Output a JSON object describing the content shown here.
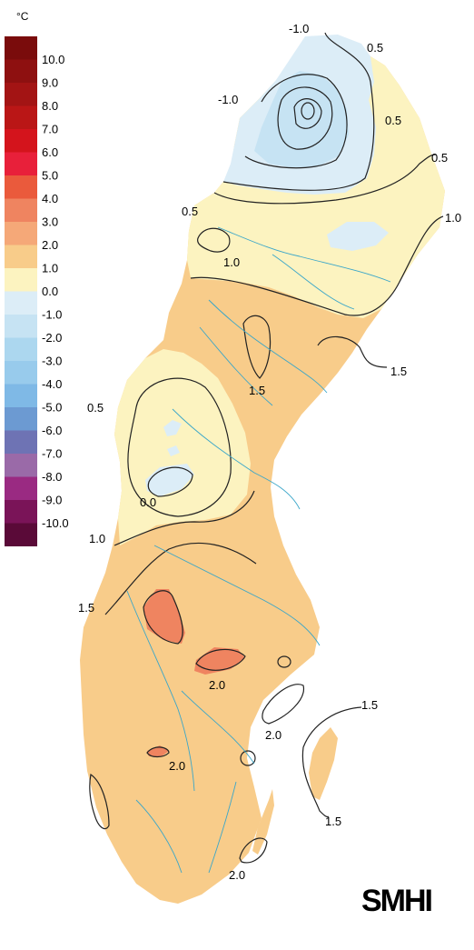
{
  "legend": {
    "unit": "°C",
    "items": [
      {
        "label": "10.0",
        "color": "#7a0c0c"
      },
      {
        "label": "9.0",
        "color": "#8e1010"
      },
      {
        "label": "8.0",
        "color": "#a31414"
      },
      {
        "label": "7.0",
        "color": "#ba1616"
      },
      {
        "label": "6.0",
        "color": "#d4141c"
      },
      {
        "label": "5.0",
        "color": "#e8203a"
      },
      {
        "label": "4.0",
        "color": "#ea5a3c"
      },
      {
        "label": "3.0",
        "color": "#ef8460"
      },
      {
        "label": "2.0",
        "color": "#f5a878"
      },
      {
        "label": "1.0",
        "color": "#f8cc8a"
      },
      {
        "label": "0.0",
        "color": "#fcf3c0"
      },
      {
        "label": "-1.0",
        "color": "#dcedf7"
      },
      {
        "label": "-2.0",
        "color": "#c6e3f3"
      },
      {
        "label": "-3.0",
        "color": "#acd7ef"
      },
      {
        "label": "-4.0",
        "color": "#98cbec"
      },
      {
        "label": "-5.0",
        "color": "#7fb9e6"
      },
      {
        "label": "-6.0",
        "color": "#6c9ad2"
      },
      {
        "label": "-7.0",
        "color": "#6e73b4"
      },
      {
        "label": "-8.0",
        "color": "#9a6aa8"
      },
      {
        "label": "-9.0",
        "color": "#9a2a82"
      },
      {
        "label": "-10.0",
        "color": "#7a1458"
      },
      {
        "label": "",
        "color": "#5a0a38"
      }
    ]
  },
  "isolines": [
    {
      "label": "-1.0"
    },
    {
      "label": "0.5"
    },
    {
      "label": "-1.0"
    },
    {
      "label": "0.5"
    },
    {
      "label": "0.5"
    },
    {
      "label": "0.5"
    },
    {
      "label": "1.0"
    },
    {
      "label": "1.0"
    },
    {
      "label": "1.5"
    },
    {
      "label": "1.5"
    },
    {
      "label": "0.5"
    },
    {
      "label": "0.0"
    },
    {
      "label": "1.0"
    },
    {
      "label": "1.5"
    },
    {
      "label": "2.0"
    },
    {
      "label": "1.5"
    },
    {
      "label": "2.0"
    },
    {
      "label": "2.0"
    },
    {
      "label": "1.5"
    },
    {
      "label": "2.0"
    }
  ],
  "logo": {
    "text": "SMHI"
  },
  "colors": {
    "zone_1_2": "#f8cc8a",
    "zone_0_1": "#fcf3c0",
    "zone_m1_0": "#dcedf7",
    "zone_m2_m1": "#c6e3f3",
    "zone_2_3": "#ef8460",
    "river": "#3aa6c9"
  }
}
